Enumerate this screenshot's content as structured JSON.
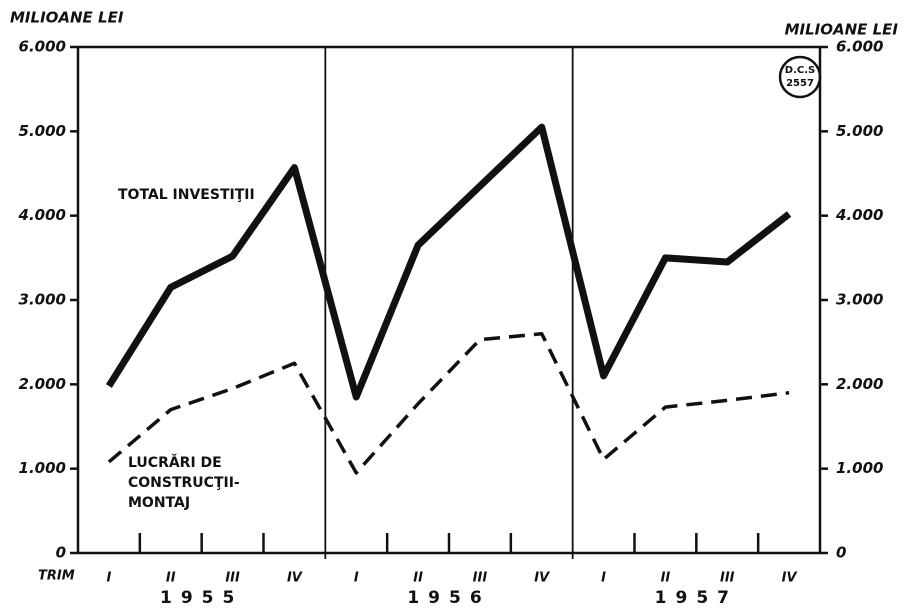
{
  "chart_data": {
    "type": "line",
    "y_axis_label": "MILIOANE LEI",
    "y2_axis_label": "MILIOANE LEI",
    "x_axis_label": "TRIM",
    "categories": [
      "I",
      "II",
      "III",
      "IV",
      "I",
      "II",
      "III",
      "IV",
      "I",
      "II",
      "III",
      "IV"
    ],
    "years": [
      "1955",
      "1956",
      "1957"
    ],
    "series": [
      {
        "name": "TOTAL INVESTIŢII",
        "color": "#111111",
        "style": "solid",
        "values": [
          1980,
          3150,
          3520,
          4570,
          1850,
          3650,
          4350,
          5050,
          2100,
          3500,
          3450,
          4020
        ]
      },
      {
        "name": "LUCRĂRI DE CONSTRUCŢII-MONTAJ",
        "color": "#111111",
        "style": "dashed",
        "values": [
          1080,
          1700,
          1950,
          2250,
          950,
          1770,
          2530,
          2600,
          1110,
          1730,
          1810,
          1900
        ]
      }
    ],
    "annotations": [
      {
        "lines": [
          "TOTAL INVESTIŢII"
        ]
      },
      {
        "lines": [
          "LUCRĂRI DE",
          "CONSTRUCŢII-",
          "MONTAJ"
        ]
      }
    ],
    "badge": {
      "lines": [
        "D.C.S",
        "2557"
      ]
    },
    "ylim": [
      0,
      6000
    ],
    "yticks": [
      0,
      {
        "value": 1000,
        "label": "1.000"
      },
      {
        "value": 2000,
        "label": "2.000"
      },
      {
        "value": 3000,
        "label": "3.000"
      },
      {
        "value": 4000,
        "label": "4.000"
      },
      {
        "value": 5000,
        "label": "5.000"
      },
      {
        "value": 6000,
        "label": "6.000"
      }
    ],
    "y2lim": [
      0,
      6000
    ],
    "y2ticks": [
      0,
      {
        "value": 1000,
        "label": "1.000"
      },
      {
        "value": 2000,
        "label": "2.000"
      },
      {
        "value": 3000,
        "label": "3.000"
      },
      {
        "value": 4000,
        "label": "4.000"
      },
      {
        "value": 5000,
        "label": "5.000"
      },
      {
        "value": 6000,
        "label": "6.000"
      }
    ]
  }
}
